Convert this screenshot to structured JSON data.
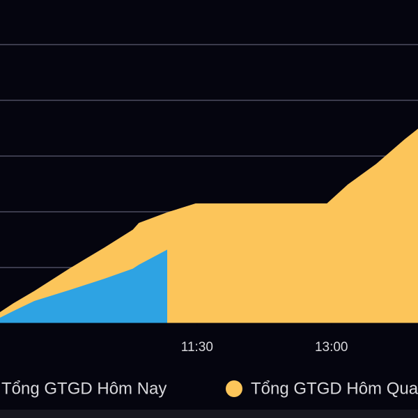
{
  "chart_data": {
    "type": "area",
    "x": [
      558,
      567,
      581,
      605,
      628,
      647,
      651,
      670,
      689,
      777,
      791,
      810,
      829,
      838
    ],
    "series": [
      {
        "name": "Tổng GTGD Hôm Qua",
        "color": "#fcc55a",
        "values": [
          0.2,
          0.36,
          0.58,
          0.99,
          1.36,
          1.68,
          1.8,
          1.99,
          2.15,
          2.15,
          2.49,
          2.86,
          3.3,
          3.49
        ]
      },
      {
        "name": "Tổng GTGD Hôm Nay",
        "color": "#2ea3e3",
        "values": [
          0.1,
          0.22,
          0.4,
          0.6,
          0.8,
          0.98,
          1.05,
          1.32,
          null,
          null,
          null,
          null,
          null,
          null
        ]
      }
    ],
    "xlim": [
      558,
      838
    ],
    "xticks": [
      {
        "value": 690,
        "label": "11:30"
      },
      {
        "value": 780,
        "label": "13:00"
      }
    ],
    "ylim": [
      0,
      5.8
    ],
    "yticks": [
      1,
      2,
      3,
      4,
      5
    ],
    "grid": true
  }
}
